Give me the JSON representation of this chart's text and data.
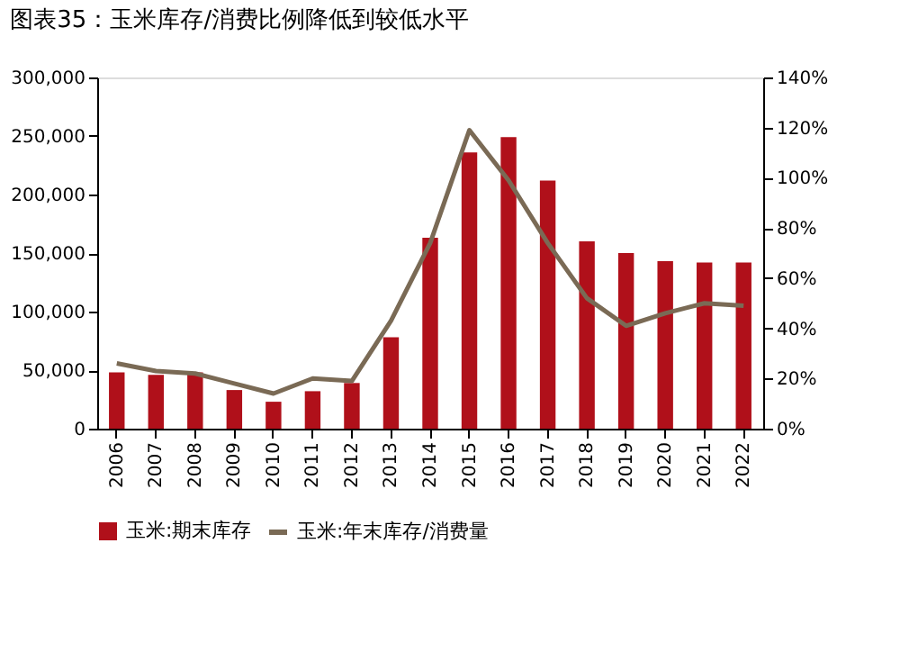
{
  "chart_data": {
    "type": "bar",
    "title": "图表35：玉米库存/消费比例降低到较低水平",
    "categories": [
      "2006",
      "2007",
      "2008",
      "2009",
      "2010",
      "2011",
      "2012",
      "2013",
      "2014",
      "2015",
      "2016",
      "2017",
      "2018",
      "2019",
      "2020",
      "2021",
      "2022"
    ],
    "series": [
      {
        "name": "玉米:期末库存",
        "color": "#b0101a",
        "values": [
          48000,
          46000,
          48000,
          33000,
          23000,
          32000,
          39000,
          78000,
          163000,
          236000,
          249000,
          212000,
          160000,
          150000,
          143000,
          142000,
          142000
        ]
      },
      {
        "name": "玉米:年末库存/消费量",
        "type": "line",
        "axis": "y2",
        "color": "#7a6a55",
        "values": [
          26,
          23,
          22,
          18,
          14,
          20,
          19,
          43,
          74,
          119,
          99,
          74,
          52,
          41,
          46,
          50,
          49
        ]
      }
    ],
    "ylim": [
      0,
      300000
    ],
    "yticks": [
      {
        "value": 0,
        "label": "0"
      },
      {
        "value": 50000,
        "label": "50,000"
      },
      {
        "value": 100000,
        "label": "100,000"
      },
      {
        "value": 150000,
        "label": "150,000"
      },
      {
        "value": 200000,
        "label": "200,000"
      },
      {
        "value": 250000,
        "label": "250,000"
      },
      {
        "value": 300000,
        "label": "300,000"
      }
    ],
    "y2lim": [
      0,
      140
    ],
    "y2ticks": [
      {
        "value": 0,
        "label": "0%"
      },
      {
        "value": 20,
        "label": "20%"
      },
      {
        "value": 40,
        "label": "40%"
      },
      {
        "value": 60,
        "label": "60%"
      },
      {
        "value": 80,
        "label": "80%"
      },
      {
        "value": 100,
        "label": "100%"
      },
      {
        "value": 120,
        "label": "120%"
      },
      {
        "value": 140,
        "label": "140%"
      }
    ],
    "grid": false,
    "legend": "bottom",
    "marker": "none",
    "line_style": "solid"
  }
}
